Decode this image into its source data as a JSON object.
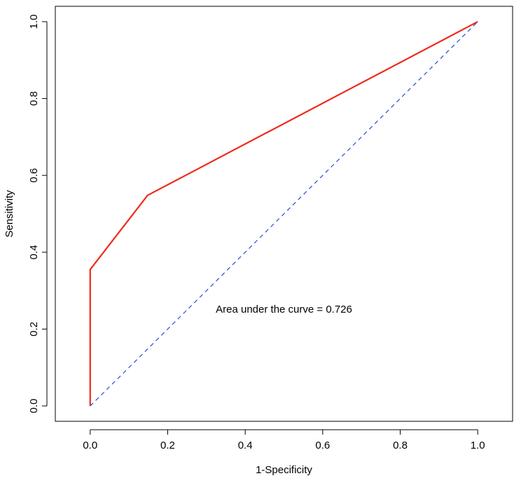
{
  "chart_data": {
    "type": "line",
    "title": "",
    "xlabel": "1-Specificity",
    "ylabel": "Sensitivity",
    "xlim": [
      -0.09,
      1.09
    ],
    "ylim": [
      -0.04,
      1.04
    ],
    "x_ticks": [
      "0.0",
      "0.2",
      "0.4",
      "0.6",
      "0.8",
      "1.0"
    ],
    "y_ticks": [
      "0.0",
      "0.2",
      "0.4",
      "0.6",
      "0.8",
      "1.0"
    ],
    "grid": false,
    "series": [
      {
        "x": [
          0.0,
          0.0,
          0.148,
          1.0
        ],
        "y": [
          0.0,
          0.355,
          0.548,
          1.0
        ],
        "color": "#ee2b1c",
        "style": "solid"
      },
      {
        "x": [
          0.0,
          1.0
        ],
        "y": [
          0.0,
          1.0
        ],
        "color": "#1f4fd8",
        "style": "dashed"
      }
    ],
    "annotations": [
      {
        "text": "Area under the curve = 0.726",
        "x": 0.5,
        "y": 0.25
      }
    ]
  }
}
